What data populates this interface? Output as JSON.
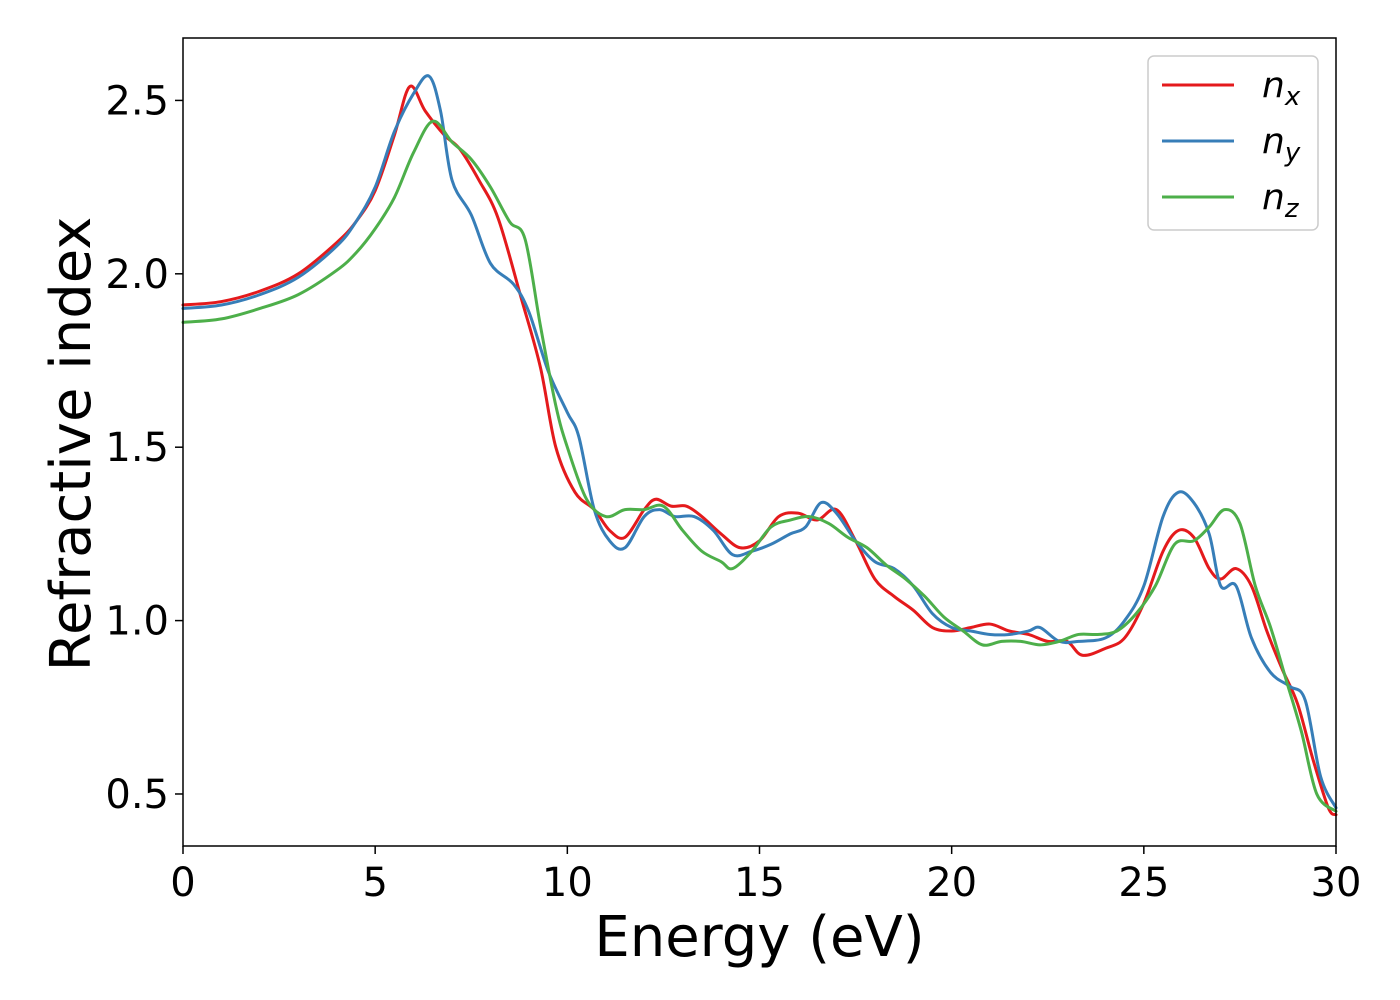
{
  "chart_data": {
    "type": "line",
    "xlabel": "Energy (eV)",
    "ylabel": "Refractive index",
    "xlim": [
      0,
      30
    ],
    "ylim": [
      0.35,
      2.68
    ],
    "xticks": [
      0,
      5,
      10,
      15,
      20,
      25,
      30
    ],
    "yticks": [
      0.5,
      1.0,
      1.5,
      2.0,
      2.5
    ],
    "xtick_labels": [
      "0",
      "5",
      "10",
      "15",
      "20",
      "25",
      "30"
    ],
    "ytick_labels": [
      "0.5",
      "1.0",
      "1.5",
      "2.0",
      "2.5"
    ],
    "grid": false,
    "legend_position": "top-right",
    "series": [
      {
        "name": "n",
        "subscript": "x",
        "color": "#e41a1c",
        "x": [
          0,
          1,
          2,
          3,
          4,
          4.5,
          5,
          5.5,
          5.9,
          6.3,
          6.8,
          7.2,
          7.7,
          8.2,
          8.8,
          9.3,
          9.7,
          10.2,
          10.7,
          11.1,
          11.5,
          12,
          12.3,
          12.7,
          13.1,
          13.5,
          14,
          14.5,
          15,
          15.5,
          16,
          16.5,
          17,
          17.5,
          18,
          18.5,
          19,
          19.5,
          20,
          20.5,
          21,
          21.5,
          22,
          22.5,
          23,
          23.4,
          24,
          24.5,
          25,
          25.5,
          25.9,
          26.3,
          26.7,
          27,
          27.4,
          27.8,
          28.2,
          28.6,
          29,
          29.4,
          29.8,
          30
        ],
        "values": [
          1.91,
          1.92,
          1.95,
          2.0,
          2.09,
          2.15,
          2.24,
          2.4,
          2.54,
          2.47,
          2.4,
          2.36,
          2.27,
          2.16,
          1.93,
          1.73,
          1.5,
          1.37,
          1.32,
          1.26,
          1.24,
          1.32,
          1.35,
          1.33,
          1.33,
          1.3,
          1.25,
          1.21,
          1.23,
          1.3,
          1.31,
          1.29,
          1.32,
          1.23,
          1.12,
          1.07,
          1.03,
          0.98,
          0.97,
          0.98,
          0.99,
          0.97,
          0.96,
          0.94,
          0.94,
          0.9,
          0.92,
          0.95,
          1.05,
          1.2,
          1.26,
          1.24,
          1.15,
          1.12,
          1.15,
          1.1,
          0.97,
          0.86,
          0.76,
          0.6,
          0.46,
          0.44
        ]
      },
      {
        "name": "n",
        "subscript": "y",
        "color": "#377eb8",
        "x": [
          0,
          1,
          2,
          3,
          4,
          4.5,
          5,
          5.5,
          6,
          6.4,
          6.7,
          7,
          7.5,
          8,
          8.6,
          9,
          9.5,
          10,
          10.3,
          10.7,
          11.1,
          11.5,
          12,
          12.4,
          12.8,
          13.3,
          13.8,
          14.3,
          14.8,
          15.3,
          15.8,
          16.2,
          16.6,
          17,
          17.5,
          18,
          18.5,
          19,
          19.5,
          20,
          20.5,
          21,
          21.5,
          22,
          22.3,
          22.8,
          23.3,
          24,
          24.5,
          25,
          25.5,
          25.9,
          26.3,
          26.7,
          27,
          27.4,
          27.8,
          28.3,
          28.8,
          29.2,
          29.6,
          30
        ],
        "values": [
          1.9,
          1.91,
          1.94,
          1.99,
          2.08,
          2.15,
          2.25,
          2.41,
          2.52,
          2.57,
          2.47,
          2.27,
          2.17,
          2.03,
          1.97,
          1.89,
          1.72,
          1.6,
          1.53,
          1.32,
          1.23,
          1.21,
          1.3,
          1.32,
          1.3,
          1.3,
          1.26,
          1.19,
          1.2,
          1.22,
          1.25,
          1.27,
          1.34,
          1.31,
          1.23,
          1.17,
          1.15,
          1.1,
          1.02,
          0.98,
          0.97,
          0.96,
          0.96,
          0.97,
          0.98,
          0.94,
          0.94,
          0.95,
          1.0,
          1.1,
          1.3,
          1.37,
          1.34,
          1.25,
          1.1,
          1.1,
          0.95,
          0.85,
          0.81,
          0.77,
          0.55,
          0.46
        ]
      },
      {
        "name": "n",
        "subscript": "z",
        "color": "#4daf4a",
        "x": [
          0,
          1,
          2,
          3,
          4,
          4.5,
          5,
          5.5,
          6,
          6.5,
          7,
          7.5,
          8,
          8.5,
          8.9,
          9.3,
          9.7,
          10,
          10.5,
          11,
          11.5,
          12,
          12.5,
          13,
          13.5,
          14,
          14.3,
          14.8,
          15.3,
          15.8,
          16.3,
          16.8,
          17.3,
          17.8,
          18.3,
          18.8,
          19.3,
          19.8,
          20.3,
          20.8,
          21.3,
          21.8,
          22.3,
          22.8,
          23.3,
          23.8,
          24.3,
          24.8,
          25.3,
          25.8,
          26.3,
          26.7,
          27.1,
          27.5,
          27.9,
          28.3,
          28.7,
          29.1,
          29.5,
          30
        ],
        "values": [
          1.86,
          1.87,
          1.9,
          1.94,
          2.01,
          2.06,
          2.13,
          2.22,
          2.35,
          2.44,
          2.38,
          2.33,
          2.25,
          2.15,
          2.1,
          1.85,
          1.62,
          1.5,
          1.35,
          1.3,
          1.32,
          1.32,
          1.33,
          1.26,
          1.2,
          1.17,
          1.15,
          1.2,
          1.27,
          1.29,
          1.3,
          1.28,
          1.24,
          1.21,
          1.16,
          1.12,
          1.07,
          1.01,
          0.97,
          0.93,
          0.94,
          0.94,
          0.93,
          0.94,
          0.96,
          0.96,
          0.97,
          1.02,
          1.1,
          1.22,
          1.23,
          1.27,
          1.32,
          1.28,
          1.1,
          0.98,
          0.83,
          0.68,
          0.5,
          0.45
        ]
      }
    ]
  }
}
